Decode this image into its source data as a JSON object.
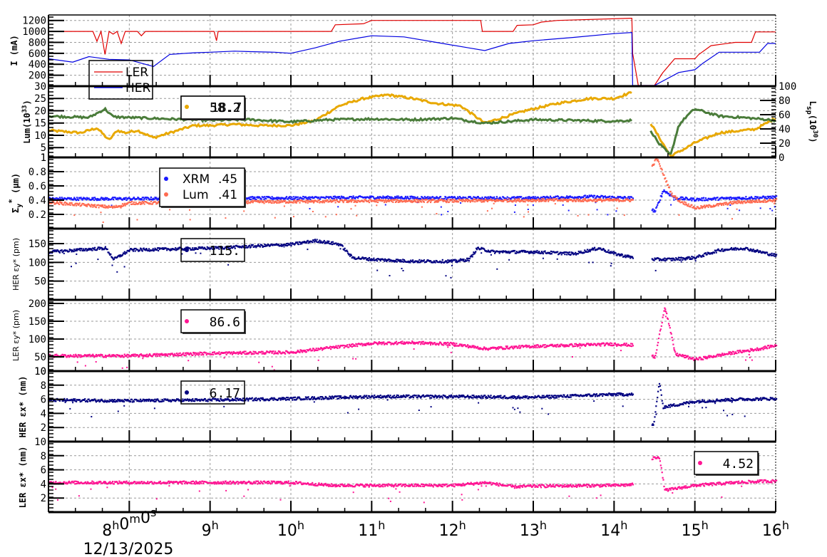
{
  "chart_data": {
    "type": "line",
    "title": "",
    "x_axis": {
      "type": "time",
      "range_hours": [
        7.0,
        16.0
      ],
      "tick_labels": [
        "8h0m0s",
        "9h",
        "10h",
        "11h",
        "12h",
        "13h",
        "14h",
        "15h",
        "16h"
      ],
      "tick_hours": [
        8,
        9,
        10,
        11,
        12,
        13,
        14,
        15,
        16
      ],
      "date_label": "12/13/2025",
      "grid": true
    },
    "panels": [
      {
        "id": "current",
        "ylabel": "I (mA)",
        "ylim": [
          0,
          1300
        ],
        "yticks": [
          200,
          400,
          600,
          800,
          1000,
          1200
        ],
        "legend": {
          "entries": [
            "LER",
            "HER"
          ],
          "position": "upper-left"
        },
        "series": [
          {
            "name": "LER",
            "color": "#e00000",
            "style": "line",
            "x": [
              7.0,
              7.55,
              7.6,
              7.65,
              7.7,
              7.75,
              7.8,
              7.85,
              7.9,
              7.95,
              8.0,
              8.1,
              8.15,
              8.2,
              9.05,
              9.08,
              9.1,
              10.5,
              10.55,
              10.9,
              11.0,
              12.35,
              12.37,
              12.75,
              12.8,
              13.0,
              13.1,
              13.3,
              14.2,
              14.22,
              14.23,
              14.3,
              14.5,
              14.6,
              14.75,
              15.0,
              15.05,
              15.2,
              15.5,
              15.7,
              15.75,
              16.0
            ],
            "y": [
              1000,
              1000,
              820,
              1000,
              580,
              1000,
              950,
              1000,
              780,
              1000,
              1000,
              1000,
              920,
              1000,
              1000,
              830,
              1000,
              1000,
              1120,
              1140,
              1200,
              1200,
              1000,
              1000,
              1110,
              1120,
              1170,
              1200,
              1240,
              1240,
              600,
              0,
              0,
              240,
              500,
              500,
              580,
              740,
              800,
              800,
              990,
              990
            ]
          },
          {
            "name": "HER",
            "color": "#0000e0",
            "style": "line",
            "x": [
              7.0,
              7.3,
              7.5,
              7.75,
              8.0,
              8.3,
              8.5,
              8.8,
              9.0,
              9.3,
              9.5,
              9.8,
              10.0,
              10.3,
              10.6,
              11.0,
              11.4,
              11.8,
              12.2,
              12.4,
              12.7,
              13.0,
              13.5,
              14.0,
              14.22,
              14.23,
              14.3,
              14.5,
              14.8,
              15.0,
              15.1,
              15.3,
              15.5,
              15.8,
              15.9,
              16.0
            ],
            "y": [
              500,
              440,
              540,
              490,
              480,
              360,
              580,
              610,
              620,
              640,
              630,
              620,
              600,
              700,
              820,
              920,
              900,
              800,
              700,
              650,
              780,
              830,
              890,
              960,
              980,
              0,
              0,
              0,
              250,
              300,
              420,
              620,
              620,
              620,
              780,
              780
            ]
          }
        ]
      },
      {
        "id": "luminosity",
        "ylabel": "Lum(10^33)",
        "ylim": [
          1,
          30
        ],
        "yticks": [
          1,
          5,
          10,
          15,
          20,
          25,
          30
        ],
        "y2label": "L_sp(10^30)",
        "y2lim": [
          0,
          100
        ],
        "y2ticks": [
          0,
          20,
          40,
          60,
          80,
          100
        ],
        "legend": {
          "entries": [
            "58.2",
            "18.7"
          ],
          "value_overlapped": true
        },
        "series": [
          {
            "name": "Luminosity",
            "color": "#e8a800",
            "style": "thick-line",
            "axis": "left",
            "x": [
              7.0,
              7.4,
              7.6,
              7.75,
              7.85,
              7.95,
              8.1,
              8.3,
              8.5,
              8.8,
              9.0,
              9.3,
              9.6,
              10.0,
              10.3,
              10.6,
              10.9,
              11.2,
              11.5,
              11.8,
              12.1,
              12.4,
              12.6,
              12.9,
              13.3,
              13.7,
              14.0,
              14.22,
              14.7,
              14.9,
              15.0,
              15.3,
              15.6,
              15.75,
              16.0
            ],
            "y": [
              12,
              11,
              13,
              8,
              12,
              11,
              12,
              9,
              11,
              14,
              14,
              14.5,
              14,
              14,
              16,
              22,
              25,
              26.5,
              25,
              23,
              22,
              15,
              17,
              20,
              23,
              25,
              25,
              27.5,
              1.5,
              5,
              7,
              11,
              12,
              12.5,
              17
            ]
          },
          {
            "name": "Specific Luminosity",
            "color": "#4a7c3a",
            "style": "thick-line",
            "axis": "right",
            "x": [
              7.0,
              7.5,
              7.7,
              7.8,
              8.0,
              8.5,
              9.0,
              9.5,
              10.0,
              10.5,
              11.0,
              11.5,
              12.0,
              12.4,
              13.0,
              13.5,
              14.0,
              14.22,
              14.47,
              14.55,
              14.7,
              14.8,
              14.9,
              15.0,
              15.3,
              15.6,
              16.0
            ],
            "y": [
              58,
              56,
              68,
              57,
              56,
              54,
              52,
              53,
              50,
              53,
              54,
              53,
              55,
              48,
              53,
              52,
              51,
              52,
              35,
              20,
              3,
              45,
              58,
              68,
              58,
              56,
              52
            ]
          }
        ]
      },
      {
        "id": "sigma_y",
        "ylabel": "Σy* (μm)",
        "ylim": [
          0,
          1
        ],
        "yticks": [
          0.2,
          0.4,
          0.6,
          0.8,
          1
        ],
        "legend": {
          "entries": [
            {
              "name": "XRM",
              "value": ".45",
              "color": "#1a1aff"
            },
            {
              "name": "Lum",
              "value": ".41",
              "color": "#ff6a50"
            }
          ]
        },
        "series": [
          {
            "name": "XRM",
            "color": "#1a1aff",
            "style": "scatter",
            "x": [
              7.0,
              8.0,
              9.0,
              10.0,
              11.0,
              12.0,
              13.0,
              13.7,
              14.22,
              14.5,
              14.6,
              14.75,
              15.0,
              15.5,
              16.0
            ],
            "y": [
              0.43,
              0.43,
              0.44,
              0.44,
              0.45,
              0.44,
              0.44,
              0.46,
              0.44,
              0.25,
              0.55,
              0.44,
              0.42,
              0.44,
              0.45
            ]
          },
          {
            "name": "Lum",
            "color": "#ff6a50",
            "style": "scatter",
            "x": [
              7.0,
              7.8,
              8.0,
              9.0,
              10.0,
              11.0,
              12.0,
              13.0,
              14.22,
              14.52,
              14.7,
              14.8,
              15.0,
              15.5,
              16.0
            ],
            "y": [
              0.38,
              0.31,
              0.37,
              0.38,
              0.39,
              0.4,
              0.4,
              0.41,
              0.41,
              1.0,
              0.5,
              0.4,
              0.3,
              0.38,
              0.41
            ]
          }
        ]
      },
      {
        "id": "her_emit_y",
        "ylabel": "HER εy* (pm)",
        "ylim": [
          0,
          190
        ],
        "yticks": [
          50,
          100,
          150
        ],
        "legend": {
          "entries": [
            {
              "value": "115.",
              "color": "#000080"
            }
          ]
        },
        "series": [
          {
            "name": "HER εy*",
            "color": "#000080",
            "style": "scatter",
            "x": [
              7.0,
              7.7,
              7.8,
              8.0,
              9.0,
              9.5,
              10.0,
              10.3,
              10.6,
              10.75,
              11.0,
              11.5,
              12.0,
              12.2,
              12.3,
              12.5,
              13.0,
              13.5,
              13.8,
              14.0,
              14.22,
              14.5,
              14.7,
              15.0,
              15.3,
              15.6,
              16.0
            ],
            "y": [
              130,
              140,
              110,
              135,
              140,
              145,
              150,
              160,
              150,
              115,
              110,
              105,
              105,
              110,
              140,
              130,
              130,
              125,
              140,
              125,
              115,
              110,
              110,
              115,
              135,
              140,
              120
            ]
          }
        ]
      },
      {
        "id": "ler_emit_y",
        "ylabel": "LER εy* (pm)",
        "ylim": [
          10,
          210
        ],
        "yticks": [
          10,
          50,
          100,
          150,
          200
        ],
        "legend": {
          "entries": [
            {
              "value": "86.6",
              "color": "#ff1493"
            }
          ]
        },
        "series": [
          {
            "name": "LER εy*",
            "color": "#ff1493",
            "style": "scatter",
            "x": [
              7.0,
              8.0,
              9.0,
              10.0,
              10.5,
              11.0,
              11.5,
              12.0,
              12.4,
              13.0,
              13.5,
              14.0,
              14.22,
              14.5,
              14.62,
              14.75,
              15.0,
              15.5,
              15.8,
              16.0
            ],
            "y": [
              55,
              55,
              62,
              65,
              78,
              90,
              92,
              88,
              75,
              82,
              85,
              88,
              85,
              50,
              195,
              60,
              45,
              65,
              75,
              85
            ]
          }
        ]
      },
      {
        "id": "her_emit_x",
        "ylabel": "HER εx* (nm)",
        "ylim": [
          0,
          10
        ],
        "yticks": [
          2,
          4,
          6,
          8,
          10
        ],
        "legend": {
          "entries": [
            {
              "value": "6.17",
              "color": "#000080"
            }
          ]
        },
        "series": [
          {
            "name": "HER εx*",
            "color": "#000080",
            "style": "scatter",
            "x": [
              7.0,
              8.0,
              9.0,
              10.0,
              11.0,
              12.0,
              13.0,
              14.0,
              14.22,
              14.48,
              14.55,
              14.6,
              15.0,
              15.5,
              16.0
            ],
            "y": [
              6.0,
              5.9,
              6.0,
              6.2,
              6.5,
              6.5,
              6.4,
              6.8,
              6.8,
              2.3,
              8.5,
              5.0,
              5.8,
              6.1,
              6.2
            ]
          }
        ]
      },
      {
        "id": "ler_emit_x",
        "ylabel": "LER εx* (nm)",
        "ylim": [
          0,
          10
        ],
        "yticks": [
          2,
          4,
          6,
          8,
          10
        ],
        "legend": {
          "entries": [
            {
              "value": "4.52",
              "color": "#ff1493"
            }
          ]
        },
        "series": [
          {
            "name": "LER εx*",
            "color": "#ff1493",
            "style": "scatter",
            "x": [
              7.0,
              8.0,
              9.0,
              10.0,
              10.5,
              11.0,
              12.0,
              12.4,
              12.75,
              13.0,
              14.0,
              14.22,
              14.4,
              14.55,
              14.62,
              15.0,
              15.5,
              15.85,
              16.0
            ],
            "y": [
              4.3,
              4.3,
              4.3,
              4.3,
              3.9,
              3.9,
              3.9,
              4.3,
              3.7,
              3.8,
              3.9,
              4.0,
              7.5,
              8.0,
              3.2,
              3.9,
              4.3,
              4.5,
              4.5
            ]
          }
        ]
      }
    ]
  },
  "labels": {
    "panel1_ylabel": "I (mA)",
    "panel2_ylabel": "Lum(10",
    "panel2_ylabel_sup": "33",
    "panel2_y2label": "L",
    "panel2_y2label_sub": "sp",
    "panel2_y2label_rest": "(10",
    "panel2_y2label_sup": "30",
    "panel3_ylabel": "Σ",
    "panel4_ylabel": "HER εy* (pm)",
    "panel5_ylabel": "LER εy* (pm)",
    "panel6_ylabel": "HER εx* (nm)",
    "panel7_ylabel": "LER εx* (nm)",
    "legend_ler": "LER",
    "legend_her": "HER",
    "legend_lum_value": "58.2",
    "legend_lum_value_overlap": "18.7",
    "legend_xrm": "XRM",
    "legend_xrm_value": ".45",
    "legend_lumsize": "Lum",
    "legend_lumsize_value": ".41",
    "legend_her_ey": "115.",
    "legend_ler_ey": "86.6",
    "legend_her_ex": "6.17",
    "legend_ler_ex": "4.52",
    "date": "12/13/2025"
  }
}
